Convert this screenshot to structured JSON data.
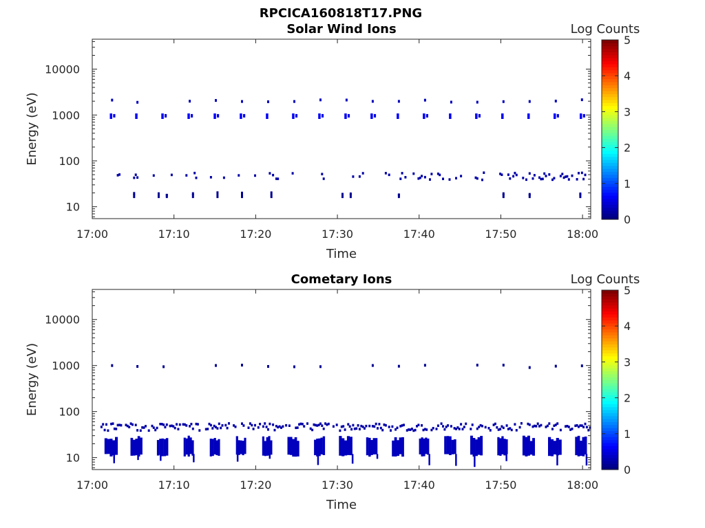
{
  "figure_title": "RPCICA160818T17.PNG",
  "chart_data": [
    {
      "type": "heatmap",
      "title": "Solar Wind Ions",
      "xlabel": "Time",
      "ylabel": "Energy (eV)",
      "x_ticks": [
        "17:00",
        "17:10",
        "17:20",
        "17:30",
        "17:40",
        "17:50",
        "18:00"
      ],
      "x_range_minutes": [
        0,
        61
      ],
      "y_scale": "log",
      "y_ticks": [
        {
          "value": 10,
          "label": "10"
        },
        {
          "value": 100,
          "label": "100"
        },
        {
          "value": 1000,
          "label": "1000"
        },
        {
          "value": 10000,
          "label": "10000"
        }
      ],
      "y_range": [
        5.5,
        45000
      ],
      "colorbar": {
        "label": "Log Counts",
        "min": 0,
        "max": 5,
        "ticks": [
          "0",
          "1",
          "2",
          "3",
          "4",
          "5"
        ],
        "colormap": "jet"
      },
      "features": [
        {
          "description": "periodic blobs at ~1000 eV",
          "energy": 1000,
          "times_min": [
            2.3,
            5.4,
            8.6,
            11.8,
            15,
            18.2,
            21.4,
            24.6,
            27.8,
            31,
            34.2,
            37.4,
            40.6,
            43.8,
            47,
            50.2,
            53.4,
            56.6,
            59.8
          ],
          "log_counts": 0.6
        },
        {
          "description": "periodic dots at ~2000 eV",
          "energy": 2100,
          "times_min": [
            2.3,
            5.4,
            11.8,
            15,
            18.2,
            21.4,
            24.6,
            27.8,
            31,
            34.2,
            37.4,
            40.6,
            43.8,
            47,
            50.2,
            53.4,
            56.6,
            59.8
          ],
          "log_counts": 0.3
        },
        {
          "description": "scattered band at ~50 eV",
          "energy": 50,
          "time_range_min": [
            1,
            61
          ],
          "log_counts": 0.2
        },
        {
          "description": "sparse points at ~20 eV",
          "energy": 20,
          "times_min": [
            5,
            8,
            9,
            12.2,
            15.2,
            18.2,
            21.8,
            30.5,
            31.5,
            37.4,
            50.2,
            53.4,
            59.6
          ],
          "log_counts": 0.1
        }
      ]
    },
    {
      "type": "heatmap",
      "title": "Cometary Ions",
      "xlabel": "Time",
      "ylabel": "Energy (eV)",
      "x_ticks": [
        "17:00",
        "17:10",
        "17:20",
        "17:30",
        "17:40",
        "17:50",
        "18:00"
      ],
      "x_range_minutes": [
        0,
        61
      ],
      "y_scale": "log",
      "y_ticks": [
        {
          "value": 10,
          "label": "10"
        },
        {
          "value": 100,
          "label": "100"
        },
        {
          "value": 1000,
          "label": "1000"
        },
        {
          "value": 10000,
          "label": "10000"
        }
      ],
      "y_range": [
        5.5,
        45000
      ],
      "colorbar": {
        "label": "Log Counts",
        "min": 0,
        "max": 5,
        "ticks": [
          "0",
          "1",
          "2",
          "3",
          "4",
          "5"
        ],
        "colormap": "jet"
      },
      "features": [
        {
          "description": "periodic dots at ~1000 eV",
          "energy": 1000,
          "times_min": [
            2.3,
            5.4,
            8.6,
            15,
            18.2,
            21.4,
            24.6,
            27.8,
            34.2,
            37.4,
            40.6,
            47,
            50.2,
            53.4,
            56.6,
            59.8
          ],
          "log_counts": 0.1
        },
        {
          "description": "near-continuous band at ~50 eV",
          "energy": 50,
          "time_range_min": [
            1,
            61
          ],
          "log_counts": 0.2
        },
        {
          "description": "periodic dense blocks 12-30 eV",
          "energy_range": [
            12,
            30
          ],
          "times_min": [
            2.3,
            5.4,
            8.6,
            11.8,
            15,
            18.2,
            21.4,
            24.6,
            27.8,
            31,
            34.2,
            37.4,
            40.6,
            43.8,
            47,
            50.2,
            53.4,
            56.6,
            59.8
          ],
          "log_counts": 0.3
        }
      ]
    }
  ]
}
